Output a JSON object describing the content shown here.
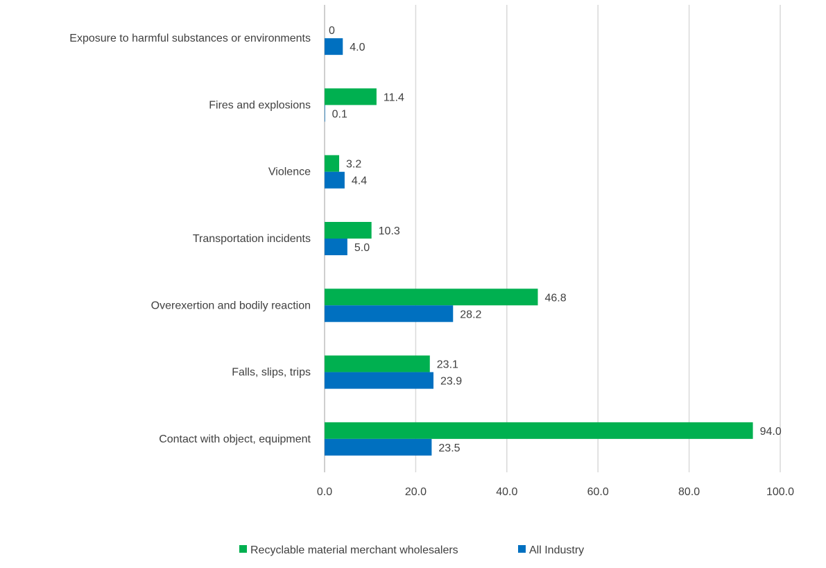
{
  "chart_data": {
    "type": "bar",
    "orientation": "horizontal",
    "categories": [
      "Exposure to harmful substances or environments",
      "Fires and explosions",
      "Violence",
      "Transportation incidents",
      "Overexertion and bodily reaction",
      "Falls, slips, trips",
      "Contact with object, equipment"
    ],
    "series": [
      {
        "name": "Recyclable material merchant wholesalers",
        "color": "#00B050",
        "values": [
          0,
          11.4,
          3.2,
          10.3,
          46.8,
          23.1,
          94.0
        ],
        "labels": [
          "0",
          "11.4",
          "3.2",
          "10.3",
          "46.8",
          "23.1",
          "94.0"
        ]
      },
      {
        "name": "All Industry",
        "color": "#0070C0",
        "values": [
          4.0,
          0.1,
          4.4,
          5.0,
          28.2,
          23.9,
          23.5
        ],
        "labels": [
          "4.0",
          "0.1",
          "4.4",
          "5.0",
          "28.2",
          "23.9",
          "23.5"
        ]
      }
    ],
    "xlim": [
      0,
      100
    ],
    "xticks": [
      "0.0",
      "20.0",
      "40.0",
      "60.0",
      "80.0",
      "100.0"
    ],
    "grid": true,
    "legend": "bottom",
    "title": "",
    "xlabel": "",
    "ylabel": ""
  }
}
